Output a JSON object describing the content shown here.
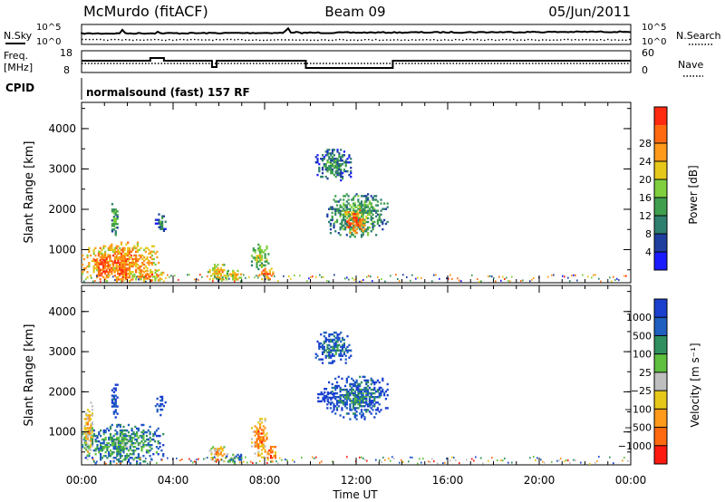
{
  "header": {
    "station": "McMurdo (fitACF)",
    "beam": "Beam 09",
    "date": "05/Jun/2011"
  },
  "labels": {
    "nsky": "N.Sky",
    "nsearch": "N.Search",
    "freq": "Freq.",
    "mhz": "[MHz]",
    "nave": "Nave",
    "cpid": "CPID",
    "cpid_value": "normalsound (fast) 157 RF"
  },
  "noise_axis": {
    "left_top": "10^5",
    "left_bottom": "10^0",
    "right_top": "10^5",
    "right_bottom": "10^0"
  },
  "freq_axis": {
    "left_top": "18",
    "left_bottom": "8",
    "right_top": "60",
    "right_bottom": "0"
  },
  "colors": {
    "power_scale": [
      "#1a1aff",
      "#1f3f9f",
      "#2f7f6f",
      "#3f9f4f",
      "#7fcf3f",
      "#e6c81a",
      "#ff9a1a",
      "#ff6a10",
      "#ff2a10"
    ],
    "velocity_scale": [
      "#1a3fcf",
      "#1f5fbf",
      "#2f8f5f",
      "#5fbf3f",
      "#bfbfbf",
      "#e6c81a",
      "#ff9a1a",
      "#ff6a10",
      "#ff1a10"
    ]
  },
  "chart_data": [
    {
      "type": "heatmap",
      "name": "power",
      "xlabel": "",
      "ylabel": "Slant Range [km]",
      "ylim": [
        180,
        4650
      ],
      "yticks": [
        "1000",
        "2000",
        "3000",
        "4000"
      ],
      "colorbar_label": "Power [dB]",
      "colorbar_ticks": [
        "4",
        "8",
        "12",
        "16",
        "20",
        "24",
        "28"
      ],
      "features": [
        {
          "t0": 0.0,
          "t1": 3.4,
          "r0": 200,
          "r1": 1200,
          "level": 7
        },
        {
          "t0": 0.5,
          "t1": 1.4,
          "r0": 250,
          "r1": 900,
          "level": 8
        },
        {
          "t0": 1.4,
          "t1": 2.2,
          "r0": 250,
          "r1": 600,
          "level": 8
        },
        {
          "t0": 2.2,
          "t1": 3.6,
          "r0": 220,
          "r1": 500,
          "level": 7
        },
        {
          "t0": 1.3,
          "t1": 1.6,
          "r0": 1300,
          "r1": 2200,
          "level": 4
        },
        {
          "t0": 3.2,
          "t1": 3.7,
          "r0": 1400,
          "r1": 1900,
          "level": 3
        },
        {
          "t0": 5.5,
          "t1": 6.4,
          "r0": 250,
          "r1": 650,
          "level": 6
        },
        {
          "t0": 6.3,
          "t1": 7.0,
          "r0": 200,
          "r1": 500,
          "level": 6
        },
        {
          "t0": 7.4,
          "t1": 8.2,
          "r0": 500,
          "r1": 1150,
          "level": 5
        },
        {
          "t0": 7.7,
          "t1": 8.4,
          "r0": 250,
          "r1": 550,
          "level": 8
        },
        {
          "t0": 10.2,
          "t1": 11.8,
          "r0": 2700,
          "r1": 3500,
          "level": 3
        },
        {
          "t0": 10.7,
          "t1": 13.4,
          "r0": 1300,
          "r1": 2400,
          "level": 4
        },
        {
          "t0": 11.5,
          "t1": 12.4,
          "r0": 1400,
          "r1": 2000,
          "level": 8
        }
      ]
    },
    {
      "type": "heatmap",
      "name": "velocity",
      "xlabel": "Time UT",
      "ylabel": "Slant Range [km]",
      "ylim": [
        180,
        4650
      ],
      "yticks": [
        "1000",
        "2000",
        "3000",
        "4000"
      ],
      "xticks": [
        "00:00",
        "04:00",
        "08:00",
        "12:00",
        "16:00",
        "20:00",
        "00:00"
      ],
      "xlim": [
        0,
        24
      ],
      "colorbar_label": "Velocity [m s⁻¹]",
      "colorbar_ticks": [
        "1000",
        "500",
        "100",
        "25",
        "−25",
        "−100",
        "−500",
        "−1000"
      ],
      "features": [
        {
          "t0": 0.0,
          "t1": 3.6,
          "r0": 200,
          "r1": 1200,
          "level": 3
        },
        {
          "t0": 0.1,
          "t1": 0.5,
          "r0": 400,
          "r1": 1800,
          "level": 6
        },
        {
          "t0": 1.3,
          "t1": 1.6,
          "r0": 1300,
          "r1": 2200,
          "level": 1
        },
        {
          "t0": 3.2,
          "t1": 3.7,
          "r0": 1400,
          "r1": 1900,
          "level": 1
        },
        {
          "t0": 5.5,
          "t1": 6.4,
          "r0": 250,
          "r1": 650,
          "level": 6
        },
        {
          "t0": 6.3,
          "t1": 7.0,
          "r0": 200,
          "r1": 500,
          "level": 3
        },
        {
          "t0": 7.4,
          "t1": 8.2,
          "r0": 350,
          "r1": 1350,
          "level": 7
        },
        {
          "t0": 8.1,
          "t1": 8.5,
          "r0": 200,
          "r1": 700,
          "level": 8
        },
        {
          "t0": 10.2,
          "t1": 11.8,
          "r0": 2700,
          "r1": 3500,
          "level": 2
        },
        {
          "t0": 10.7,
          "t1": 13.4,
          "r0": 1300,
          "r1": 2400,
          "level": 2
        },
        {
          "t0": 10.3,
          "t1": 11.0,
          "r0": 1700,
          "r1": 2100,
          "level": 0
        }
      ]
    }
  ]
}
